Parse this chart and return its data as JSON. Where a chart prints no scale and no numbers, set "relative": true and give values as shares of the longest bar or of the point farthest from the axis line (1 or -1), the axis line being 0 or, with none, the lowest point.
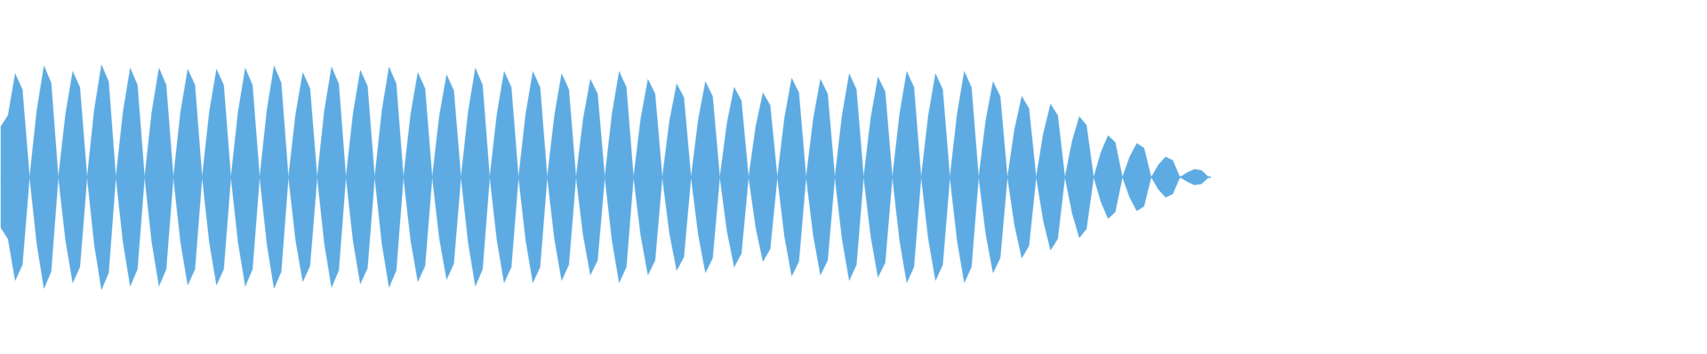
{
  "chart_data": {
    "type": "area",
    "relative": true,
    "ref_lines": [
      {
        "axis": "y",
        "value": 0,
        "color": "#5dabe2"
      }
    ],
    "categories": [
      null,
      null,
      null,
      null,
      null,
      null,
      null,
      null,
      null,
      null,
      null,
      null,
      null,
      null,
      null,
      null,
      null,
      null,
      null,
      null,
      null,
      null,
      null,
      null,
      null,
      null,
      null,
      null,
      null,
      null,
      null,
      null,
      null,
      null,
      null,
      null,
      null,
      null,
      null,
      null,
      null,
      null,
      null,
      null,
      null,
      null,
      null,
      null,
      null,
      null,
      null,
      null,
      null,
      null,
      null,
      null,
      null,
      null,
      null,
      null,
      null,
      null,
      null,
      null,
      null,
      null,
      null,
      null,
      null,
      null,
      null,
      null,
      null,
      null,
      null,
      null,
      null,
      null,
      null,
      null,
      null,
      null,
      null,
      null,
      null,
      null,
      null,
      null,
      null,
      null,
      null,
      null,
      null,
      null,
      null,
      null,
      null,
      null,
      null,
      null,
      null,
      null,
      null,
      null,
      null,
      null,
      null,
      null,
      null,
      null,
      null,
      null,
      null,
      null,
      null,
      null,
      null,
      null,
      null,
      null,
      null,
      null,
      null,
      null,
      null,
      null,
      null,
      null,
      null,
      null,
      null,
      null,
      null,
      null,
      null,
      null,
      null,
      null,
      null,
      null,
      null,
      null,
      null,
      null,
      null,
      null,
      null,
      null,
      null,
      null,
      null,
      null,
      null,
      null,
      null,
      null,
      null,
      null,
      null,
      null,
      null,
      null,
      null,
      null,
      null,
      null,
      null,
      null,
      null
    ],
    "series": [
      {
        "color": "#5dabe2",
        "values": [
          0.45,
          0.55,
          0.92,
          0.78,
          0,
          0.59,
          0.99,
          0.84,
          0,
          0.56,
          0.94,
          0.8,
          0,
          0.6,
          1,
          0.85,
          0,
          0.58,
          0.97,
          0.82,
          0,
          0.58,
          0.97,
          0.82,
          0,
          0.58,
          0.96,
          0.82,
          0,
          0.58,
          0.96,
          0.82,
          0,
          0.58,
          0.97,
          0.82,
          0,
          0.59,
          0.99,
          0.84,
          0,
          0.56,
          0.93,
          0.79,
          0,
          0.59,
          0.98,
          0.83,
          0,
          0.57,
          0.95,
          0.81,
          0,
          0.59,
          0.98,
          0.83,
          0,
          0.56,
          0.93,
          0.79,
          0,
          0.55,
          0.91,
          0.77,
          0,
          0.58,
          0.97,
          0.82,
          0,
          0.56,
          0.94,
          0.8,
          0,
          0.56,
          0.94,
          0.8,
          0,
          0.55,
          0.92,
          0.78,
          0,
          0.52,
          0.87,
          0.74,
          0,
          0.56,
          0.94,
          0.8,
          0,
          0.52,
          0.87,
          0.74,
          0,
          0.5,
          0.83,
          0.71,
          0,
          0.51,
          0.85,
          0.72,
          0,
          0.48,
          0.8,
          0.68,
          0,
          0.45,
          0.75,
          0.64,
          0,
          0.53,
          0.88,
          0.75,
          0,
          0.52,
          0.87,
          0.74,
          0,
          0.55,
          0.92,
          0.78,
          0,
          0.53,
          0.89,
          0.76,
          0,
          0.56,
          0.94,
          0.8,
          0,
          0.55,
          0.92,
          0.78,
          0,
          0.56,
          0.94,
          0.8,
          0,
          0.51,
          0.85,
          0.72,
          0,
          0.43,
          0.72,
          0.61,
          0,
          0.39,
          0.65,
          0.55,
          0,
          0.32,
          0.54,
          0.46,
          0,
          0.22,
          0.37,
          0.31,
          0,
          0.18,
          0.3,
          0.26,
          0,
          0.11,
          0.18,
          0.15,
          0,
          0.04,
          0.07,
          0.06,
          0
        ]
      },
      {
        "color": "#5dabe2",
        "values": [
          -0.45,
          -0.55,
          -0.92,
          -0.78,
          0,
          -0.59,
          -0.99,
          -0.84,
          0,
          -0.56,
          -0.94,
          -0.8,
          0,
          -0.6,
          -1,
          -0.85,
          0,
          -0.58,
          -0.97,
          -0.82,
          0,
          -0.58,
          -0.97,
          -0.82,
          0,
          -0.58,
          -0.96,
          -0.82,
          0,
          -0.58,
          -0.96,
          -0.82,
          0,
          -0.58,
          -0.97,
          -0.82,
          0,
          -0.59,
          -0.99,
          -0.84,
          0,
          -0.56,
          -0.93,
          -0.79,
          0,
          -0.59,
          -0.98,
          -0.83,
          0,
          -0.57,
          -0.95,
          -0.81,
          0,
          -0.59,
          -0.98,
          -0.83,
          0,
          -0.56,
          -0.93,
          -0.79,
          0,
          -0.55,
          -0.91,
          -0.77,
          0,
          -0.58,
          -0.97,
          -0.82,
          0,
          -0.56,
          -0.94,
          -0.8,
          0,
          -0.56,
          -0.94,
          -0.8,
          0,
          -0.55,
          -0.92,
          -0.78,
          0,
          -0.52,
          -0.87,
          -0.74,
          0,
          -0.56,
          -0.94,
          -0.8,
          0,
          -0.52,
          -0.87,
          -0.74,
          0,
          -0.5,
          -0.83,
          -0.71,
          0,
          -0.51,
          -0.85,
          -0.72,
          0,
          -0.48,
          -0.8,
          -0.68,
          0,
          -0.45,
          -0.75,
          -0.64,
          0,
          -0.53,
          -0.88,
          -0.75,
          0,
          -0.52,
          -0.87,
          -0.74,
          0,
          -0.55,
          -0.92,
          -0.78,
          0,
          -0.53,
          -0.89,
          -0.76,
          0,
          -0.56,
          -0.94,
          -0.8,
          0,
          -0.55,
          -0.92,
          -0.78,
          0,
          -0.56,
          -0.94,
          -0.8,
          0,
          -0.51,
          -0.85,
          -0.72,
          0,
          -0.43,
          -0.72,
          -0.61,
          0,
          -0.39,
          -0.65,
          -0.55,
          0,
          -0.32,
          -0.54,
          -0.46,
          0,
          -0.22,
          -0.37,
          -0.31,
          0,
          -0.18,
          -0.3,
          -0.26,
          0,
          -0.11,
          -0.18,
          -0.15,
          0,
          -0.04,
          -0.07,
          -0.06,
          0
        ]
      }
    ]
  }
}
